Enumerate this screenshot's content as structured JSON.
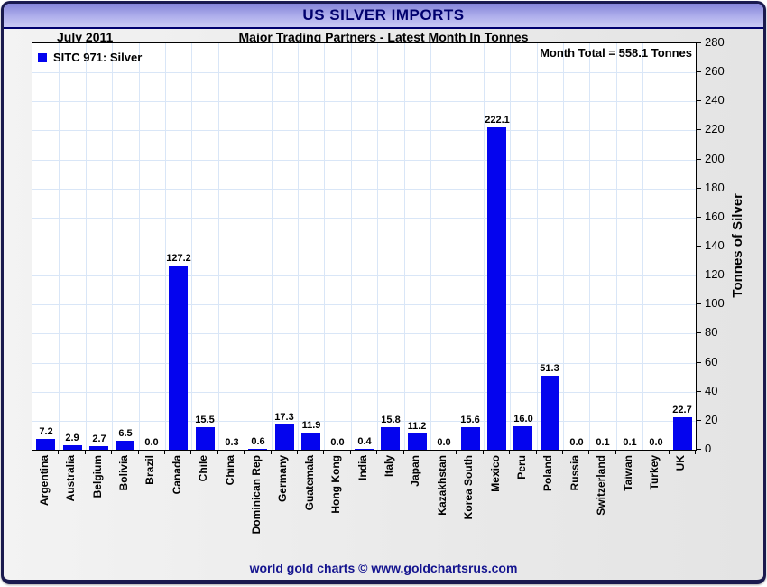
{
  "window": {
    "title": "US SILVER IMPORTS"
  },
  "subheader": {
    "period": "July 2011",
    "subtitle": "Major Trading Partners - Latest Month In Tonnes"
  },
  "legend": {
    "label": "SITC 971: Silver"
  },
  "annotation": {
    "month_total": "Month Total = 558.1 Tonnes"
  },
  "y_axis": {
    "label": "Tonnes of Silver"
  },
  "footer": {
    "credit": "world gold charts © www.goldchartsrus.com"
  },
  "colors": {
    "bar": "#0404ee",
    "navy_title": "#00006e",
    "navy_footer": "#14148f",
    "grid": "#d9e6f7",
    "titlebar_top": "#8484d8",
    "titlebar_bottom": "#c9c9f4"
  },
  "chart_data": {
    "type": "bar",
    "title": "US SILVER IMPORTS",
    "subtitle": "Major Trading Partners - Latest Month In Tonnes",
    "period": "July 2011",
    "categories": [
      "Argentina",
      "Australia",
      "Belgium",
      "Bolivia",
      "Brazil",
      "Canada",
      "Chile",
      "China",
      "Dominican Rep",
      "Germany",
      "Guatemala",
      "Hong Kong",
      "India",
      "Italy",
      "Japan",
      "Kazakhstan",
      "Korea South",
      "Mexico",
      "Peru",
      "Poland",
      "Russia",
      "Switzerland",
      "Taiwan",
      "Turkey",
      "UK"
    ],
    "series": [
      {
        "name": "SITC 971: Silver",
        "values": [
          7.2,
          2.9,
          2.7,
          6.5,
          0.0,
          127.2,
          15.5,
          0.3,
          0.6,
          17.3,
          11.9,
          0.0,
          0.4,
          15.8,
          11.2,
          0.0,
          15.6,
          222.1,
          16.0,
          51.3,
          0.0,
          0.1,
          0.1,
          0.0,
          22.7
        ]
      }
    ],
    "value_labels_decimals": 1,
    "ylabel": "Tonnes of Silver",
    "ylim": [
      0,
      280
    ],
    "ytick_step": 20,
    "grid": true,
    "legend_position": "top-left",
    "annotation": "Month Total = 558.1 Tonnes",
    "month_total": 558.1
  }
}
